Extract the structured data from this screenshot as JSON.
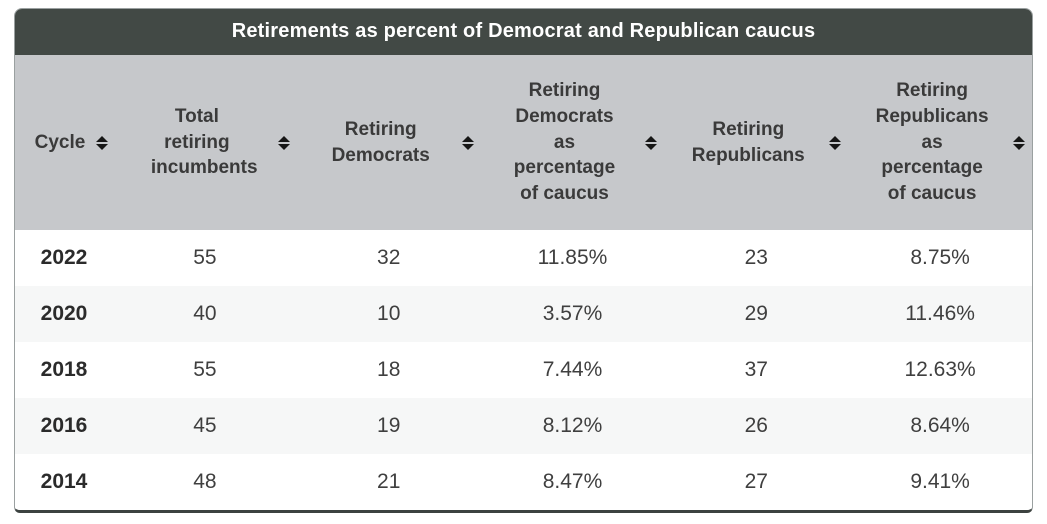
{
  "chart_data": {
    "type": "table",
    "title": "Retirements as percent of Democrat and Republican caucus",
    "columns": [
      "Cycle",
      "Total retiring incumbents",
      "Retiring Democrats",
      "Retiring Democrats as percentage of caucus",
      "Retiring Republicans",
      "Retiring Republicans as percentage of caucus"
    ],
    "sortable": true,
    "rows": [
      [
        "2022",
        "55",
        "32",
        "11.85%",
        "23",
        "8.75%"
      ],
      [
        "2020",
        "40",
        "10",
        "3.57%",
        "29",
        "11.46%"
      ],
      [
        "2018",
        "55",
        "18",
        "7.44%",
        "37",
        "12.63%"
      ],
      [
        "2016",
        "45",
        "19",
        "8.12%",
        "26",
        "8.64%"
      ],
      [
        "2014",
        "48",
        "21",
        "8.47%",
        "27",
        "9.41%"
      ]
    ]
  },
  "icons": {
    "sort": "up-down-triangles"
  },
  "colors": {
    "title_bar_bg": "#424945",
    "title_text": "#ffffff",
    "header_bg": "#c6c8cb",
    "header_text": "#3a3a3a",
    "row_bg": "#ffffff",
    "row_alt_bg": "#f6f7f7",
    "body_text": "#3f3f3f",
    "card_border": "#9aa0a0",
    "bottom_rule": "#3c4240"
  }
}
